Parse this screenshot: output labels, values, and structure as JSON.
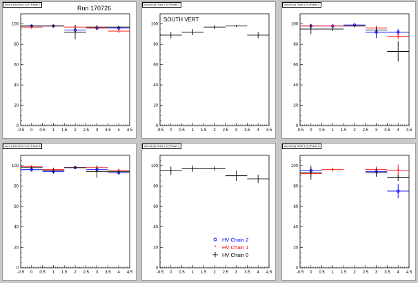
{
  "run_label": "Run 170726",
  "colors": {
    "chain2": "#0000ff",
    "chain1": "#ff0000",
    "chain0": "#000000"
  },
  "legend": {
    "items": [
      {
        "label": "HV Chain 2",
        "color": "#0000ff",
        "marker": "circle"
      },
      {
        "label": "HV Chain 1",
        "color": "#ff0000",
        "marker": "star"
      },
      {
        "label": "HV Chain 0",
        "color": "#000000",
        "marker": "plus"
      }
    ]
  },
  "chart_data": [
    {
      "title": "dom 8 (8) Orbit 1 (V) Panel 0",
      "type": "scatter",
      "annotation": "",
      "xlim": [
        -0.5,
        4.5
      ],
      "ylim": [
        0,
        110
      ],
      "xticks": [
        "-0.5",
        "0",
        "0.5",
        "1",
        "1.5",
        "2",
        "2.5",
        "3",
        "3.5",
        "4",
        "4.5"
      ],
      "yticks": [
        "0",
        "20",
        "40",
        "60",
        "80",
        "100"
      ],
      "series": [
        {
          "key": "chain2",
          "points": [
            {
              "x": 0,
              "y": 98,
              "ex": 0.5,
              "ey": 1
            },
            {
              "x": 1,
              "y": 98,
              "ex": 0.5,
              "ey": 1
            },
            {
              "x": 2,
              "y": 94,
              "ex": 0.5,
              "ey": 2
            },
            {
              "x": 3,
              "y": 96,
              "ex": 0.5,
              "ey": 2
            },
            {
              "x": 4,
              "y": 96,
              "ex": 0.5,
              "ey": 1
            }
          ]
        },
        {
          "key": "chain1",
          "points": [
            {
              "x": 0,
              "y": 97,
              "ex": 0.5,
              "ey": 2
            },
            {
              "x": 1,
              "y": 98,
              "ex": 0.5,
              "ey": 1
            },
            {
              "x": 2,
              "y": 97,
              "ex": 0.5,
              "ey": 2
            },
            {
              "x": 3,
              "y": 96,
              "ex": 0.5,
              "ey": 1
            },
            {
              "x": 4,
              "y": 93,
              "ex": 0.5,
              "ey": 2
            }
          ]
        },
        {
          "key": "chain0",
          "points": [
            {
              "x": 0,
              "y": 98,
              "ex": 0.5,
              "ey": 1
            },
            {
              "x": 1,
              "y": 98,
              "ex": 0.5,
              "ey": 1
            },
            {
              "x": 2,
              "y": 92,
              "ex": 0.5,
              "ey": 7
            },
            {
              "x": 3,
              "y": 97,
              "ex": 0.5,
              "ey": 2
            },
            {
              "x": 4,
              "y": 97,
              "ex": 0.5,
              "ey": 1
            }
          ]
        }
      ]
    },
    {
      "title": "dom 8 (8) Orbit 1 (V) Panel 1",
      "type": "scatter",
      "annotation": "SOUTH VERT",
      "xlim": [
        -0.5,
        4.5
      ],
      "ylim": [
        0,
        110
      ],
      "xticks": [
        "-0.5",
        "0",
        "0.5",
        "1",
        "1.5",
        "2",
        "2.5",
        "3",
        "3.5",
        "4",
        "4.5"
      ],
      "yticks": [
        "0",
        "20",
        "40",
        "60",
        "80",
        "100"
      ],
      "series": [
        {
          "key": "chain0",
          "points": [
            {
              "x": 0,
              "y": 89,
              "ex": 0.5,
              "ey": 3
            },
            {
              "x": 1,
              "y": 92,
              "ex": 0.5,
              "ey": 3
            },
            {
              "x": 2,
              "y": 97,
              "ex": 0.5,
              "ey": 2
            },
            {
              "x": 3,
              "y": 98,
              "ex": 0.5,
              "ey": 1
            },
            {
              "x": 4,
              "y": 89,
              "ex": 0.5,
              "ey": 3
            }
          ]
        }
      ]
    },
    {
      "title": "dom 8 (8) Orbit 1 (V) Panel 2",
      "type": "scatter",
      "annotation": "",
      "xlim": [
        -0.5,
        4.5
      ],
      "ylim": [
        0,
        110
      ],
      "xticks": [
        "-0.5",
        "0",
        "0.5",
        "1",
        "1.5",
        "2",
        "2.5",
        "3",
        "3.5",
        "4",
        "4.5"
      ],
      "yticks": [
        "0",
        "20",
        "40",
        "60",
        "80",
        "100"
      ],
      "series": [
        {
          "key": "chain2",
          "points": [
            {
              "x": 0,
              "y": 98,
              "ex": 0.5,
              "ey": 2
            },
            {
              "x": 1,
              "y": 98,
              "ex": 0.5,
              "ey": 1
            },
            {
              "x": 2,
              "y": 99,
              "ex": 0.5,
              "ey": 1
            },
            {
              "x": 3,
              "y": 92,
              "ex": 0.5,
              "ey": 6
            },
            {
              "x": 4,
              "y": 92,
              "ex": 0.5,
              "ey": 3
            }
          ]
        },
        {
          "key": "chain1",
          "points": [
            {
              "x": 0,
              "y": 98,
              "ex": 0.5,
              "ey": 2
            },
            {
              "x": 1,
              "y": 98,
              "ex": 0.5,
              "ey": 1
            },
            {
              "x": 2,
              "y": 98,
              "ex": 0.5,
              "ey": 1
            },
            {
              "x": 3,
              "y": 96,
              "ex": 0.5,
              "ey": 2
            },
            {
              "x": 4,
              "y": 88,
              "ex": 0.5,
              "ey": 3
            }
          ]
        },
        {
          "key": "chain0",
          "points": [
            {
              "x": 0,
              "y": 95,
              "ex": 0.5,
              "ey": 5
            },
            {
              "x": 1,
              "y": 95,
              "ex": 0.5,
              "ey": 2
            },
            {
              "x": 2,
              "y": 98,
              "ex": 0.5,
              "ey": 1
            },
            {
              "x": 3,
              "y": 94,
              "ex": 0.5,
              "ey": 2
            },
            {
              "x": 4,
              "y": 73,
              "ex": 0.5,
              "ey": 10
            }
          ]
        }
      ]
    },
    {
      "title": "dom 8 (8) Orbit 1 (V) Panel 3",
      "type": "scatter",
      "annotation": "",
      "xlim": [
        -0.5,
        4.5
      ],
      "ylim": [
        0,
        110
      ],
      "xticks": [
        "-0.5",
        "0",
        "0.5",
        "1",
        "1.5",
        "2",
        "2.5",
        "3",
        "3.5",
        "4",
        "4.5"
      ],
      "yticks": [
        "0",
        "20",
        "40",
        "60",
        "80",
        "100"
      ],
      "series": [
        {
          "key": "chain2",
          "points": [
            {
              "x": 0,
              "y": 96,
              "ex": 0.5,
              "ey": 2
            },
            {
              "x": 1,
              "y": 94,
              "ex": 0.5,
              "ey": 2
            },
            {
              "x": 2,
              "y": 98,
              "ex": 0.5,
              "ey": 1
            },
            {
              "x": 3,
              "y": 96,
              "ex": 0.5,
              "ey": 2
            },
            {
              "x": 4,
              "y": 93,
              "ex": 0.5,
              "ey": 2
            }
          ]
        },
        {
          "key": "chain1",
          "points": [
            {
              "x": 0,
              "y": 99,
              "ex": 0.5,
              "ey": 1
            },
            {
              "x": 1,
              "y": 96,
              "ex": 0.5,
              "ey": 2
            },
            {
              "x": 2,
              "y": 98,
              "ex": 0.5,
              "ey": 1
            },
            {
              "x": 3,
              "y": 98,
              "ex": 0.5,
              "ey": 2
            },
            {
              "x": 4,
              "y": 95,
              "ex": 0.5,
              "ey": 2
            }
          ]
        },
        {
          "key": "chain0",
          "points": [
            {
              "x": 0,
              "y": 98,
              "ex": 0.5,
              "ey": 1
            },
            {
              "x": 1,
              "y": 95,
              "ex": 0.5,
              "ey": 2
            },
            {
              "x": 2,
              "y": 98,
              "ex": 0.5,
              "ey": 1
            },
            {
              "x": 3,
              "y": 94,
              "ex": 0.5,
              "ey": 6
            },
            {
              "x": 4,
              "y": 94,
              "ex": 0.5,
              "ey": 2
            }
          ]
        }
      ]
    },
    {
      "title": "dom 8 (8) Orbit 1 (V) Panel 4",
      "type": "scatter",
      "annotation": "",
      "xlim": [
        -0.5,
        4.5
      ],
      "ylim": [
        0,
        110
      ],
      "xticks": [
        "-0.5",
        "0",
        "0.5",
        "1",
        "1.5",
        "2",
        "2.5",
        "3",
        "3.5",
        "4",
        "4.5"
      ],
      "yticks": [
        "0",
        "20",
        "40",
        "60",
        "80",
        "100"
      ],
      "series": [
        {
          "key": "chain0",
          "points": [
            {
              "x": 0,
              "y": 95,
              "ex": 0.5,
              "ey": 4
            },
            {
              "x": 1,
              "y": 97,
              "ex": 0.5,
              "ey": 3
            },
            {
              "x": 2,
              "y": 97,
              "ex": 0.5,
              "ey": 2
            },
            {
              "x": 3,
              "y": 90,
              "ex": 0.5,
              "ey": 5
            },
            {
              "x": 4,
              "y": 87,
              "ex": 0.5,
              "ey": 4
            }
          ]
        }
      ]
    },
    {
      "title": "dom 8 (8) Orbit 1 (V) Panel 5",
      "type": "scatter",
      "annotation": "",
      "xlim": [
        -0.5,
        4.5
      ],
      "ylim": [
        0,
        110
      ],
      "xticks": [
        "-0.5",
        "0",
        "0.5",
        "1",
        "1.5",
        "2",
        "2.5",
        "3",
        "3.5",
        "4",
        "4.5"
      ],
      "yticks": [
        "0",
        "20",
        "40",
        "60",
        "80",
        "100"
      ],
      "series": [
        {
          "key": "chain2",
          "points": [
            {
              "x": 0,
              "y": 95,
              "ex": 0.5,
              "ey": 3
            },
            {
              "x": 3,
              "y": 94,
              "ex": 0.5,
              "ey": 3
            },
            {
              "x": 4,
              "y": 75,
              "ex": 0.5,
              "ey": 7
            }
          ]
        },
        {
          "key": "chain1",
          "points": [
            {
              "x": 0,
              "y": 92,
              "ex": 0.5,
              "ey": 3
            },
            {
              "x": 1,
              "y": 96,
              "ex": 0.5,
              "ey": 2
            },
            {
              "x": 3,
              "y": 96,
              "ex": 0.5,
              "ey": 3
            },
            {
              "x": 4,
              "y": 95,
              "ex": 0.5,
              "ey": 6
            }
          ]
        },
        {
          "key": "chain0",
          "points": [
            {
              "x": 0,
              "y": 93,
              "ex": 0.5,
              "ey": 7
            },
            {
              "x": 3,
              "y": 93,
              "ex": 0.5,
              "ey": 4
            },
            {
              "x": 4,
              "y": 88,
              "ex": 0.5,
              "ey": 3
            }
          ]
        }
      ]
    }
  ]
}
